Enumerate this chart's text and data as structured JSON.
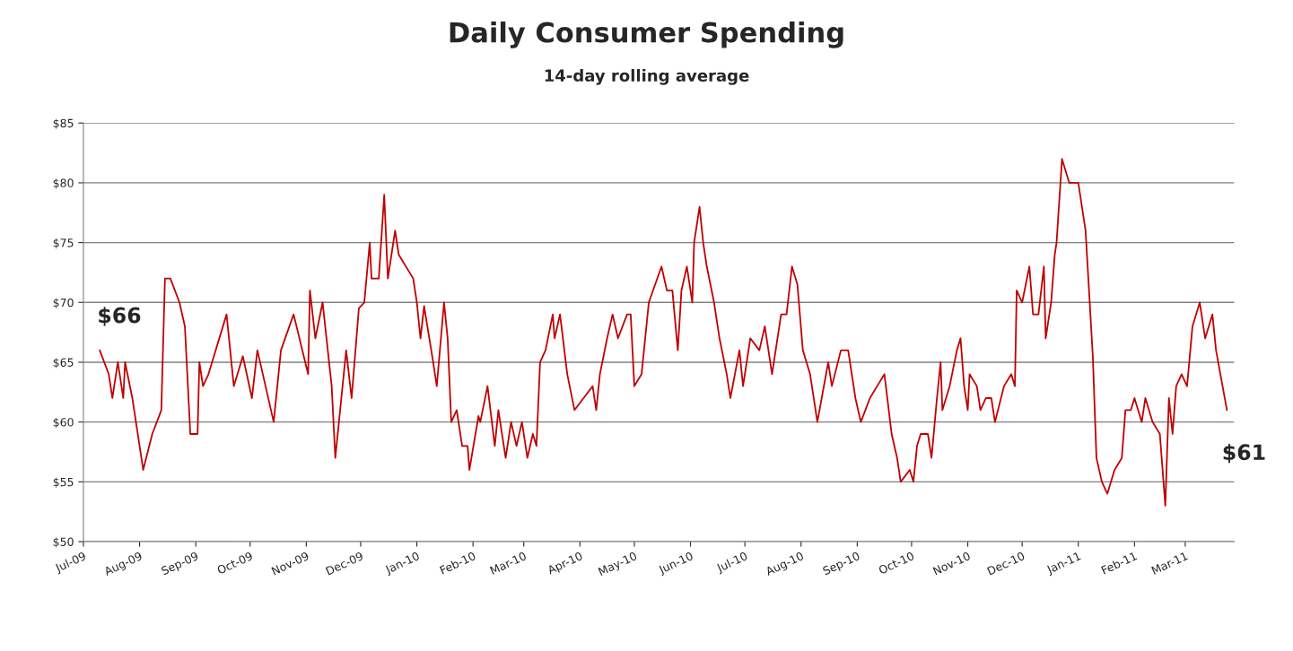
{
  "chart_data": {
    "type": "line",
    "title": "Daily Consumer Spending",
    "subtitle": "14-day rolling average",
    "x": [
      "2009-07-10",
      "2009-07-15",
      "2009-07-17",
      "2009-07-20",
      "2009-07-23",
      "2009-07-24",
      "2009-07-28",
      "2009-08-03",
      "2009-08-08",
      "2009-08-13",
      "2009-08-15",
      "2009-08-18",
      "2009-08-23",
      "2009-08-26",
      "2009-08-29",
      "2009-09-02",
      "2009-09-03",
      "2009-09-05",
      "2009-09-08",
      "2009-09-18",
      "2009-09-22",
      "2009-09-27",
      "2009-10-02",
      "2009-10-05",
      "2009-10-14",
      "2009-10-18",
      "2009-10-25",
      "2009-11-02",
      "2009-11-03",
      "2009-11-06",
      "2009-11-10",
      "2009-11-15",
      "2009-11-17",
      "2009-11-23",
      "2009-11-26",
      "2009-11-30",
      "2009-12-03",
      "2009-12-06",
      "2009-12-07",
      "2009-12-11",
      "2009-12-14",
      "2009-12-16",
      "2009-12-20",
      "2009-12-22",
      "2009-12-30",
      "2010-01-01",
      "2010-01-03",
      "2010-01-05",
      "2010-01-10",
      "2010-01-12",
      "2010-01-16",
      "2010-01-18",
      "2010-01-20",
      "2010-01-23",
      "2010-01-26",
      "2010-01-29",
      "2010-01-30",
      "2010-02-04",
      "2010-02-05",
      "2010-02-09",
      "2010-02-13",
      "2010-02-15",
      "2010-02-19",
      "2010-02-22",
      "2010-02-25",
      "2010-02-28",
      "2010-03-03",
      "2010-03-06",
      "2010-03-08",
      "2010-03-10",
      "2010-03-13",
      "2010-03-17",
      "2010-03-18",
      "2010-03-21",
      "2010-03-25",
      "2010-03-29",
      "2010-04-03",
      "2010-04-08",
      "2010-04-10",
      "2010-04-12",
      "2010-04-16",
      "2010-04-19",
      "2010-04-22",
      "2010-04-27",
      "2010-04-29",
      "2010-05-01",
      "2010-05-05",
      "2010-05-09",
      "2010-05-16",
      "2010-05-19",
      "2010-05-22",
      "2010-05-25",
      "2010-05-27",
      "2010-05-30",
      "2010-06-02",
      "2010-06-03",
      "2010-06-06",
      "2010-06-08",
      "2010-06-10",
      "2010-06-14",
      "2010-06-17",
      "2010-06-21",
      "2010-06-23",
      "2010-06-28",
      "2010-06-30",
      "2010-07-04",
      "2010-07-09",
      "2010-07-12",
      "2010-07-16",
      "2010-07-21",
      "2010-07-24",
      "2010-07-27",
      "2010-07-30",
      "2010-08-02",
      "2010-08-06",
      "2010-08-10",
      "2010-08-16",
      "2010-08-18",
      "2010-08-23",
      "2010-08-27",
      "2010-08-31",
      "2010-09-03",
      "2010-09-08",
      "2010-09-12",
      "2010-09-16",
      "2010-09-20",
      "2010-09-23",
      "2010-09-25",
      "2010-09-30",
      "2010-10-02",
      "2010-10-04",
      "2010-10-06",
      "2010-10-10",
      "2010-10-12",
      "2010-10-15",
      "2010-10-17",
      "2010-10-18",
      "2010-10-22",
      "2010-10-26",
      "2010-10-28",
      "2010-10-30",
      "2010-11-01",
      "2010-11-02",
      "2010-11-06",
      "2010-11-08",
      "2010-11-11",
      "2010-11-14",
      "2010-11-16",
      "2010-11-21",
      "2010-11-25",
      "2010-11-27",
      "2010-11-28",
      "2010-12-01",
      "2010-12-05",
      "2010-12-07",
      "2010-12-10",
      "2010-12-13",
      "2010-12-14",
      "2010-12-17",
      "2010-12-19",
      "2010-12-20",
      "2010-12-23",
      "2010-12-27",
      "2011-01-01",
      "2011-01-05",
      "2011-01-09",
      "2011-01-11",
      "2011-01-14",
      "2011-01-17",
      "2011-01-21",
      "2011-01-25",
      "2011-01-27",
      "2011-01-30",
      "2011-02-01",
      "2011-02-05",
      "2011-02-07",
      "2011-02-11",
      "2011-02-15",
      "2011-02-18",
      "2011-02-20",
      "2011-02-22",
      "2011-02-24",
      "2011-02-27",
      "2011-03-02",
      "2011-03-05",
      "2011-03-09",
      "2011-03-12",
      "2011-03-16",
      "2011-03-18",
      "2011-03-24"
    ],
    "series": [
      {
        "color": "#c00000",
        "values": [
          66,
          64,
          62,
          65,
          62,
          65,
          62,
          56,
          59,
          61,
          72,
          72,
          70,
          68,
          59,
          59,
          65,
          63,
          64,
          69,
          63,
          65.5,
          62,
          66,
          60,
          66,
          69,
          64,
          71,
          67,
          70,
          63,
          57,
          66,
          62,
          69.5,
          70,
          75,
          72,
          72,
          79,
          72,
          76,
          74,
          72,
          70,
          67,
          69.7,
          65,
          63,
          70,
          67,
          60,
          61,
          58,
          58,
          56,
          60.5,
          60,
          63,
          58,
          61,
          57,
          60,
          58,
          60,
          57,
          59,
          58,
          65,
          66,
          69,
          67,
          69,
          64,
          61,
          62,
          63,
          61,
          64,
          67,
          69,
          67,
          69,
          69,
          63,
          64,
          70,
          73,
          71,
          71,
          66,
          71,
          73,
          70,
          75,
          78,
          75,
          73,
          70,
          67,
          64,
          62,
          66,
          63,
          67,
          66,
          68,
          64,
          69,
          69,
          73,
          71.5,
          66,
          64,
          60,
          65,
          63,
          66,
          66,
          62,
          60,
          62,
          63,
          64,
          59,
          57,
          55,
          56,
          55,
          58,
          59,
          59,
          57,
          62,
          65,
          61,
          63,
          66,
          67,
          63,
          61,
          64,
          63,
          61,
          62,
          62,
          60,
          63,
          64,
          63,
          71,
          70,
          73,
          69,
          69,
          73,
          67,
          70,
          74,
          75,
          82,
          80,
          80,
          76,
          65.5,
          57,
          55,
          54,
          56,
          57,
          61,
          61,
          62,
          60,
          62,
          60,
          59,
          53,
          62,
          59,
          63,
          64,
          63,
          68,
          70,
          67,
          69,
          66,
          61
        ]
      }
    ],
    "xlim": [
      "2009-07-01",
      "2011-03-28"
    ],
    "xticks": [
      {
        "value": "2009-07-01",
        "label": "Jul-09"
      },
      {
        "value": "2009-08-01",
        "label": "Aug-09"
      },
      {
        "value": "2009-09-01",
        "label": "Sep-09"
      },
      {
        "value": "2009-10-01",
        "label": "Oct-09"
      },
      {
        "value": "2009-11-01",
        "label": "Nov-09"
      },
      {
        "value": "2009-12-01",
        "label": "Dec-09"
      },
      {
        "value": "2010-01-01",
        "label": "Jan-10"
      },
      {
        "value": "2010-02-01",
        "label": "Feb-10"
      },
      {
        "value": "2010-03-01",
        "label": "Mar-10"
      },
      {
        "value": "2010-04-01",
        "label": "Apr-10"
      },
      {
        "value": "2010-05-01",
        "label": "May-10"
      },
      {
        "value": "2010-06-01",
        "label": "Jun-10"
      },
      {
        "value": "2010-07-01",
        "label": "Jul-10"
      },
      {
        "value": "2010-08-01",
        "label": "Aug-10"
      },
      {
        "value": "2010-09-01",
        "label": "Sep-10"
      },
      {
        "value": "2010-10-01",
        "label": "Oct-10"
      },
      {
        "value": "2010-11-01",
        "label": "Nov-10"
      },
      {
        "value": "2010-12-01",
        "label": "Dec-10"
      },
      {
        "value": "2011-01-01",
        "label": "Jan-11"
      },
      {
        "value": "2011-02-01",
        "label": "Feb-11"
      },
      {
        "value": "2011-03-01",
        "label": "Mar-11"
      }
    ],
    "ylim": [
      50,
      85
    ],
    "yticks": [
      {
        "value": 50,
        "label": "$50"
      },
      {
        "value": 55,
        "label": "$55"
      },
      {
        "value": 60,
        "label": "$60"
      },
      {
        "value": 65,
        "label": "$65"
      },
      {
        "value": 70,
        "label": "$70"
      },
      {
        "value": 75,
        "label": "$75"
      },
      {
        "value": 80,
        "label": "$80"
      },
      {
        "value": 85,
        "label": "$85"
      }
    ],
    "grid": "y",
    "marker": "none",
    "line_style": "solid",
    "annotations": [
      {
        "text": "$66",
        "x": "2009-07-10",
        "y": 66
      },
      {
        "text": "$61",
        "x": "2011-03-24",
        "y": 61
      }
    ]
  }
}
